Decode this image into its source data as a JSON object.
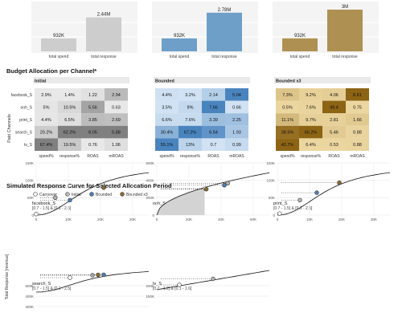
{
  "summary_panels": [
    {
      "color": "#cdcdcd",
      "bars": [
        {
          "label": "total spend",
          "value_label": "932K",
          "v": 932
        },
        {
          "label": "total response",
          "value_label": "2.44M",
          "v": 2440
        }
      ]
    },
    {
      "color": "#6e9fc9",
      "bars": [
        {
          "label": "total spend",
          "value_label": "932K",
          "v": 932
        },
        {
          "label": "total response",
          "value_label": "2.78M",
          "v": 2780
        }
      ]
    },
    {
      "color": "#ae9152",
      "bars": [
        {
          "label": "total spend",
          "value_label": "932K",
          "v": 932
        },
        {
          "label": "total response",
          "value_label": "3M",
          "v": 3000
        }
      ]
    }
  ],
  "budget": {
    "title": "Budget Allocation per Channel*",
    "ylabel": "Paid Channels",
    "channels": [
      "facebook_S",
      "ooh_S",
      "print_S",
      "search_S",
      "tv_S"
    ],
    "metrics": [
      "spend%",
      "response%",
      "ROAS",
      "mROAS"
    ],
    "panels": [
      {
        "title": "Initial",
        "palette": "gray",
        "rows": [
          [
            "2.9%",
            "1.4%",
            "1.22",
            "2.94"
          ],
          [
            "5%",
            "10.5%",
            "5.56",
            "0.63"
          ],
          [
            "4.4%",
            "6.5%",
            "3.85",
            "2.69"
          ],
          [
            "20.2%",
            "62.2%",
            "8.05",
            "5.88"
          ],
          [
            "67.4%",
            "19.5%",
            "0.76",
            "1.06"
          ]
        ]
      },
      {
        "title": "Bounded",
        "palette": "blue",
        "rows": [
          [
            "4.4%",
            "3.2%",
            "2.14",
            "5.04"
          ],
          [
            "3.5%",
            "9%",
            "7.66",
            "0.66"
          ],
          [
            "6.6%",
            "7.6%",
            "3.39",
            "2.25"
          ],
          [
            "30.4%",
            "67.2%",
            "6.54",
            "1.93"
          ],
          [
            "55.1%",
            "13%",
            "0.7",
            "0.99"
          ]
        ]
      },
      {
        "title": "Bounded x3",
        "palette": "gold",
        "rows": [
          [
            "7.3%",
            "9.2%",
            "4.06",
            "8.61"
          ],
          [
            "0.5%",
            "7.6%",
            "49.4",
            "0.75"
          ],
          [
            "11.1%",
            "9.7%",
            "2.81",
            "1.66"
          ],
          [
            "38.5%",
            "66.2%",
            "5.46",
            "0.88"
          ],
          [
            "42.7%",
            "6.4%",
            "0.53",
            "0.88"
          ]
        ]
      }
    ]
  },
  "curves": {
    "title": "Simulated Response Curve for Selected Allocation Period",
    "ylabel": "Total Response [revenue]",
    "legend": [
      {
        "label": "Carryover",
        "color": "#ffffff"
      },
      {
        "label": "Initial",
        "color": "#b4b4b4"
      },
      {
        "label": "Bounded",
        "color": "#4f7fb8"
      },
      {
        "label": "Bounded x3",
        "color": "#8c6d2e"
      }
    ],
    "panels": [
      {
        "name": "facebook_S",
        "sub": "[0.7 - 1.5] & [0.1 - 2.5]",
        "xticks": [
          "0",
          "10K",
          "20K",
          "30K"
        ],
        "yticks": [
          "0",
          "50K",
          "100K",
          "150K"
        ]
      },
      {
        "name": "ooh_S",
        "sub": "",
        "xticks": [
          "0",
          "20K",
          "40K",
          "60K"
        ],
        "yticks": [
          "0",
          "200K",
          "400K",
          "600K"
        ]
      },
      {
        "name": "print_S",
        "sub": "[0.7 - 1.5] & [0.1 - 2.5]",
        "xticks": [
          "0",
          "10K",
          "20K",
          "30K"
        ],
        "yticks": [
          "0",
          "50K",
          "100K",
          "150K"
        ]
      },
      {
        "name": "search_S",
        "sub": "[0.7 - 1.5] & [0.1 - 2.5]",
        "xticks": [],
        "yticks": [
          "500K",
          "400K",
          "300K"
        ]
      },
      {
        "name": "tv_S",
        "sub": "[0.7 - 1.2] & [0.1 - 1.6]",
        "xticks": [],
        "yticks": [
          "200K",
          "150K"
        ]
      }
    ]
  }
}
